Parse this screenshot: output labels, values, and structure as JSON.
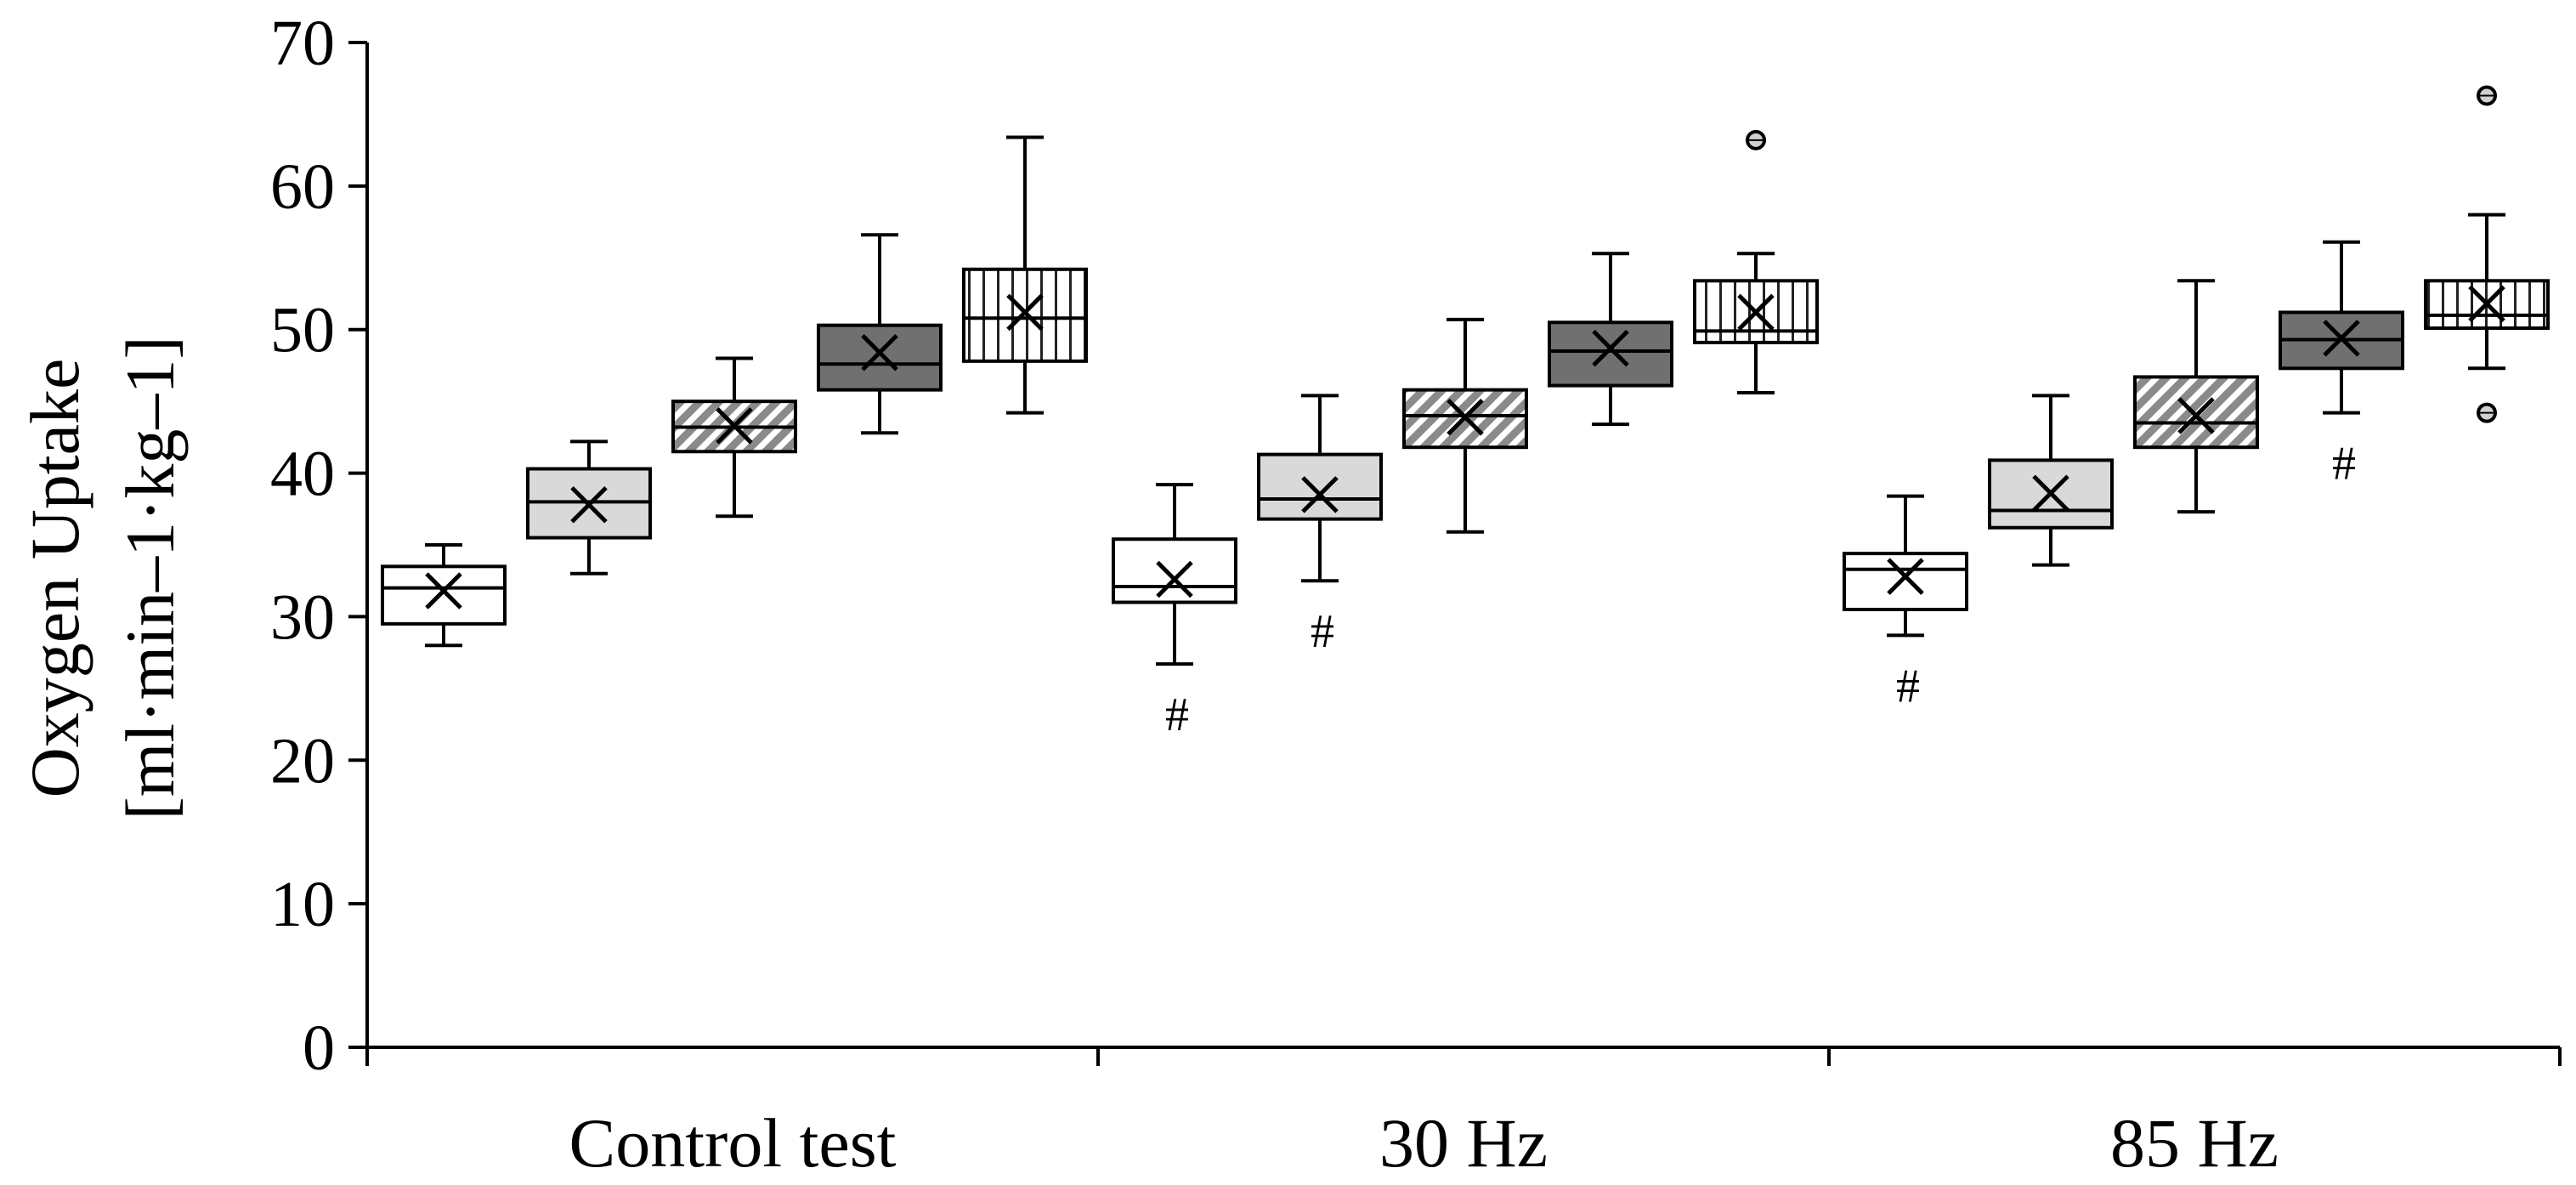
{
  "chart_data": {
    "type": "box",
    "title": "",
    "xlabel": "",
    "ylabel_lines": [
      "Oxygen Uptake",
      "[ml·min–1·kg–1]"
    ],
    "ylim": [
      0,
      70
    ],
    "yticks": [
      "0",
      "10",
      "20",
      "30",
      "40",
      "50",
      "60",
      "70"
    ],
    "categories": [
      "Control test",
      "30 Hz",
      "85 Hz"
    ],
    "box_styles": [
      "white",
      "light-gray",
      "diagonal-hatch",
      "dark-gray",
      "vertical-lines"
    ],
    "colors": {
      "white": "#ffffff",
      "light_gray": "#d9d9d9",
      "dark_gray": "#707070",
      "hatch": "#8a8a8a",
      "stroke": "#000000"
    },
    "significance_symbol": "#",
    "groups": [
      {
        "category": "Control test",
        "boxes": [
          {
            "style": "white",
            "whisker_low": 28.0,
            "q1": 29.5,
            "median": 32.0,
            "q3": 33.5,
            "whisker_high": 35.0,
            "mean": 31.8,
            "outliers": [],
            "sig": ""
          },
          {
            "style": "light-gray",
            "whisker_low": 33.0,
            "q1": 35.5,
            "median": 38.0,
            "q3": 40.3,
            "whisker_high": 42.2,
            "mean": 37.8,
            "outliers": [],
            "sig": ""
          },
          {
            "style": "diagonal-hatch",
            "whisker_low": 37.0,
            "q1": 41.5,
            "median": 43.2,
            "q3": 45.0,
            "whisker_high": 48.0,
            "mean": 43.3,
            "outliers": [],
            "sig": ""
          },
          {
            "style": "dark-gray",
            "whisker_low": 42.8,
            "q1": 45.8,
            "median": 47.6,
            "q3": 50.3,
            "whisker_high": 56.6,
            "mean": 48.4,
            "outliers": [],
            "sig": ""
          },
          {
            "style": "vertical-lines",
            "whisker_low": 44.2,
            "q1": 47.8,
            "median": 50.8,
            "q3": 54.2,
            "whisker_high": 63.4,
            "mean": 51.2,
            "outliers": [],
            "sig": ""
          }
        ]
      },
      {
        "category": "30 Hz",
        "boxes": [
          {
            "style": "white",
            "whisker_low": 26.7,
            "q1": 31.0,
            "median": 32.1,
            "q3": 35.4,
            "whisker_high": 39.2,
            "mean": 32.6,
            "outliers": [],
            "sig": "#"
          },
          {
            "style": "light-gray",
            "whisker_low": 32.5,
            "q1": 36.8,
            "median": 38.2,
            "q3": 41.3,
            "whisker_high": 45.4,
            "mean": 38.5,
            "outliers": [],
            "sig": "#"
          },
          {
            "style": "diagonal-hatch",
            "whisker_low": 35.9,
            "q1": 41.8,
            "median": 44.0,
            "q3": 45.8,
            "whisker_high": 50.7,
            "mean": 43.9,
            "outliers": [],
            "sig": ""
          },
          {
            "style": "dark-gray",
            "whisker_low": 43.4,
            "q1": 46.1,
            "median": 48.5,
            "q3": 50.5,
            "whisker_high": 55.3,
            "mean": 48.7,
            "outliers": [],
            "sig": ""
          },
          {
            "style": "vertical-lines",
            "whisker_low": 45.6,
            "q1": 49.1,
            "median": 49.9,
            "q3": 53.4,
            "whisker_high": 55.3,
            "mean": 51.2,
            "outliers": [
              63.2
            ],
            "sig": ""
          }
        ]
      },
      {
        "category": "85 Hz",
        "boxes": [
          {
            "style": "white",
            "whisker_low": 28.7,
            "q1": 30.5,
            "median": 33.3,
            "q3": 34.4,
            "whisker_high": 38.4,
            "mean": 32.8,
            "outliers": [],
            "sig": "#"
          },
          {
            "style": "light-gray",
            "whisker_low": 33.6,
            "q1": 36.2,
            "median": 37.4,
            "q3": 40.9,
            "whisker_high": 45.4,
            "mean": 38.6,
            "outliers": [],
            "sig": ""
          },
          {
            "style": "diagonal-hatch",
            "whisker_low": 37.3,
            "q1": 41.8,
            "median": 43.5,
            "q3": 46.7,
            "whisker_high": 53.4,
            "mean": 44.0,
            "outliers": [],
            "sig": ""
          },
          {
            "style": "dark-gray",
            "whisker_low": 44.2,
            "q1": 47.3,
            "median": 49.3,
            "q3": 51.2,
            "whisker_high": 56.1,
            "mean": 49.4,
            "outliers": [],
            "sig": "#"
          },
          {
            "style": "vertical-lines",
            "whisker_low": 47.3,
            "q1": 50.1,
            "median": 51.0,
            "q3": 53.4,
            "whisker_high": 58.0,
            "mean": 51.8,
            "outliers": [
              44.2,
              66.3
            ],
            "sig": ""
          }
        ]
      }
    ]
  }
}
